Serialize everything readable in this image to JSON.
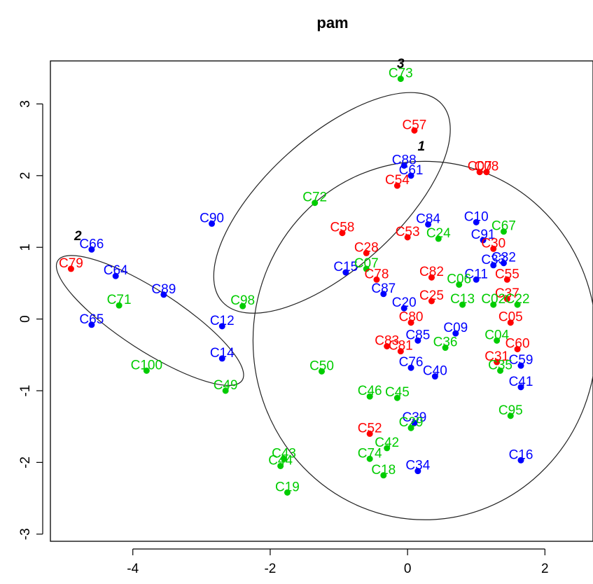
{
  "chart_data": {
    "type": "scatter",
    "title": "pam",
    "xlabel": "",
    "ylabel": "",
    "xlim": [
      -5.2,
      2.7
    ],
    "ylim": [
      -3.1,
      3.6
    ],
    "xticks": [
      -4,
      -2,
      0,
      2
    ],
    "yticks": [
      -3,
      -2,
      -1,
      0,
      1,
      2,
      3
    ],
    "grid": false,
    "colors": {
      "red": "#ff0000",
      "blue": "#0000ff",
      "green": "#00cc00"
    },
    "cluster_labels": [
      {
        "text": "1",
        "x": 0.2,
        "y": 2.35
      },
      {
        "text": "2",
        "x": -4.8,
        "y": 1.1
      },
      {
        "text": "3",
        "x": -0.1,
        "y": 3.5
      }
    ],
    "ellipses": [
      {
        "cx": 0.25,
        "cy": -0.3,
        "rx": 2.5,
        "ry": 2.5,
        "angle": 0
      },
      {
        "cx": -1.1,
        "cy": 1.62,
        "rx": 2.15,
        "ry": 0.92,
        "angle": 42
      },
      {
        "cx": -3.75,
        "cy": -0.02,
        "rx": 1.6,
        "ry": 0.42,
        "angle": -33
      }
    ],
    "points": [
      {
        "label": "C73",
        "x": -0.1,
        "y": 3.35,
        "color": "green"
      },
      {
        "label": "C57",
        "x": 0.1,
        "y": 2.63,
        "color": "red"
      },
      {
        "label": "C88",
        "x": -0.05,
        "y": 2.14,
        "color": "blue"
      },
      {
        "label": "C61",
        "x": 0.05,
        "y": 2.0,
        "color": "blue"
      },
      {
        "label": "C54",
        "x": -0.15,
        "y": 1.86,
        "color": "red"
      },
      {
        "label": "C07",
        "x": 1.05,
        "y": 2.05,
        "color": "red"
      },
      {
        "label": "C08",
        "x": 1.15,
        "y": 2.05,
        "color": "red"
      },
      {
        "label": "C72",
        "x": -1.35,
        "y": 1.62,
        "color": "green"
      },
      {
        "label": "C90",
        "x": -2.85,
        "y": 1.33,
        "color": "blue"
      },
      {
        "label": "C84",
        "x": 0.3,
        "y": 1.32,
        "color": "blue"
      },
      {
        "label": "C10",
        "x": 1.0,
        "y": 1.35,
        "color": "blue"
      },
      {
        "label": "C67",
        "x": 1.4,
        "y": 1.22,
        "color": "green"
      },
      {
        "label": "C58",
        "x": -0.95,
        "y": 1.2,
        "color": "red"
      },
      {
        "label": "C53",
        "x": 0.0,
        "y": 1.14,
        "color": "red"
      },
      {
        "label": "C24",
        "x": 0.45,
        "y": 1.12,
        "color": "green"
      },
      {
        "label": "C91",
        "x": 1.1,
        "y": 1.1,
        "color": "blue"
      },
      {
        "label": "C30",
        "x": 1.25,
        "y": 0.98,
        "color": "red"
      },
      {
        "label": "C66",
        "x": -4.6,
        "y": 0.97,
        "color": "blue"
      },
      {
        "label": "C28",
        "x": -0.6,
        "y": 0.92,
        "color": "red"
      },
      {
        "label": "C32",
        "x": 1.4,
        "y": 0.78,
        "color": "blue"
      },
      {
        "label": "C33",
        "x": 1.25,
        "y": 0.75,
        "color": "blue"
      },
      {
        "label": "C79",
        "x": -4.9,
        "y": 0.7,
        "color": "red"
      },
      {
        "label": "C15",
        "x": -0.9,
        "y": 0.65,
        "color": "blue"
      },
      {
        "label": "C07",
        "x": -0.6,
        "y": 0.7,
        "color": "green"
      },
      {
        "label": "C78",
        "x": -0.45,
        "y": 0.55,
        "color": "red"
      },
      {
        "label": "C82",
        "x": 0.35,
        "y": 0.58,
        "color": "red"
      },
      {
        "label": "C55",
        "x": 1.45,
        "y": 0.55,
        "color": "red"
      },
      {
        "label": "C64",
        "x": -4.25,
        "y": 0.6,
        "color": "blue"
      },
      {
        "label": "C11",
        "x": 1.0,
        "y": 0.55,
        "color": "blue"
      },
      {
        "label": "C06",
        "x": 0.75,
        "y": 0.48,
        "color": "green"
      },
      {
        "label": "C87",
        "x": -0.35,
        "y": 0.35,
        "color": "blue"
      },
      {
        "label": "C25",
        "x": 0.35,
        "y": 0.25,
        "color": "red"
      },
      {
        "label": "C89",
        "x": -3.55,
        "y": 0.34,
        "color": "blue"
      },
      {
        "label": "C98",
        "x": -2.4,
        "y": 0.18,
        "color": "green"
      },
      {
        "label": "C71",
        "x": -4.2,
        "y": 0.19,
        "color": "green"
      },
      {
        "label": "C37",
        "x": 1.45,
        "y": 0.28,
        "color": "red"
      },
      {
        "label": "C22",
        "x": 1.6,
        "y": 0.2,
        "color": "green"
      },
      {
        "label": "C13",
        "x": 0.8,
        "y": 0.2,
        "color": "green"
      },
      {
        "label": "C02",
        "x": 1.25,
        "y": 0.2,
        "color": "green"
      },
      {
        "label": "C20",
        "x": -0.05,
        "y": 0.15,
        "color": "blue"
      },
      {
        "label": "C80",
        "x": 0.05,
        "y": -0.05,
        "color": "red"
      },
      {
        "label": "C12",
        "x": -2.7,
        "y": -0.1,
        "color": "blue"
      },
      {
        "label": "C65",
        "x": -4.6,
        "y": -0.08,
        "color": "blue"
      },
      {
        "label": "C05",
        "x": 1.5,
        "y": -0.05,
        "color": "red"
      },
      {
        "label": "C09",
        "x": 0.7,
        "y": -0.2,
        "color": "blue"
      },
      {
        "label": "C85",
        "x": 0.15,
        "y": -0.3,
        "color": "blue"
      },
      {
        "label": "C36",
        "x": 0.55,
        "y": -0.4,
        "color": "green"
      },
      {
        "label": "C04",
        "x": 1.3,
        "y": -0.3,
        "color": "green"
      },
      {
        "label": "C83",
        "x": -0.3,
        "y": -0.38,
        "color": "red"
      },
      {
        "label": "C60",
        "x": 1.6,
        "y": -0.42,
        "color": "red"
      },
      {
        "label": "C81",
        "x": -0.1,
        "y": -0.45,
        "color": "red"
      },
      {
        "label": "C14",
        "x": -2.7,
        "y": -0.55,
        "color": "blue"
      },
      {
        "label": "C76",
        "x": 0.05,
        "y": -0.68,
        "color": "blue"
      },
      {
        "label": "C31",
        "x": 1.3,
        "y": -0.6,
        "color": "red"
      },
      {
        "label": "C59",
        "x": 1.65,
        "y": -0.65,
        "color": "blue"
      },
      {
        "label": "C100",
        "x": -3.8,
        "y": -0.72,
        "color": "green"
      },
      {
        "label": "C50",
        "x": -1.25,
        "y": -0.73,
        "color": "green"
      },
      {
        "label": "C35",
        "x": 1.35,
        "y": -0.72,
        "color": "green"
      },
      {
        "label": "C40",
        "x": 0.4,
        "y": -0.8,
        "color": "blue"
      },
      {
        "label": "C41",
        "x": 1.65,
        "y": -0.95,
        "color": "blue"
      },
      {
        "label": "C49",
        "x": -2.65,
        "y": -1.0,
        "color": "green"
      },
      {
        "label": "C46",
        "x": -0.55,
        "y": -1.08,
        "color": "green"
      },
      {
        "label": "C45",
        "x": -0.15,
        "y": -1.1,
        "color": "green"
      },
      {
        "label": "C95",
        "x": 1.5,
        "y": -1.35,
        "color": "green"
      },
      {
        "label": "C39",
        "x": 0.1,
        "y": -1.45,
        "color": "blue"
      },
      {
        "label": "C29",
        "x": 0.05,
        "y": -1.52,
        "color": "green"
      },
      {
        "label": "C52",
        "x": -0.55,
        "y": -1.6,
        "color": "red"
      },
      {
        "label": "C42",
        "x": -0.3,
        "y": -1.8,
        "color": "green"
      },
      {
        "label": "C43",
        "x": -1.8,
        "y": -1.95,
        "color": "green"
      },
      {
        "label": "C74",
        "x": -0.55,
        "y": -1.95,
        "color": "green"
      },
      {
        "label": "C16",
        "x": 1.65,
        "y": -1.97,
        "color": "blue"
      },
      {
        "label": "C44",
        "x": -1.85,
        "y": -2.05,
        "color": "green"
      },
      {
        "label": "C34",
        "x": 0.15,
        "y": -2.12,
        "color": "blue"
      },
      {
        "label": "C18",
        "x": -0.35,
        "y": -2.18,
        "color": "green"
      },
      {
        "label": "C19",
        "x": -1.75,
        "y": -2.42,
        "color": "green"
      }
    ]
  }
}
